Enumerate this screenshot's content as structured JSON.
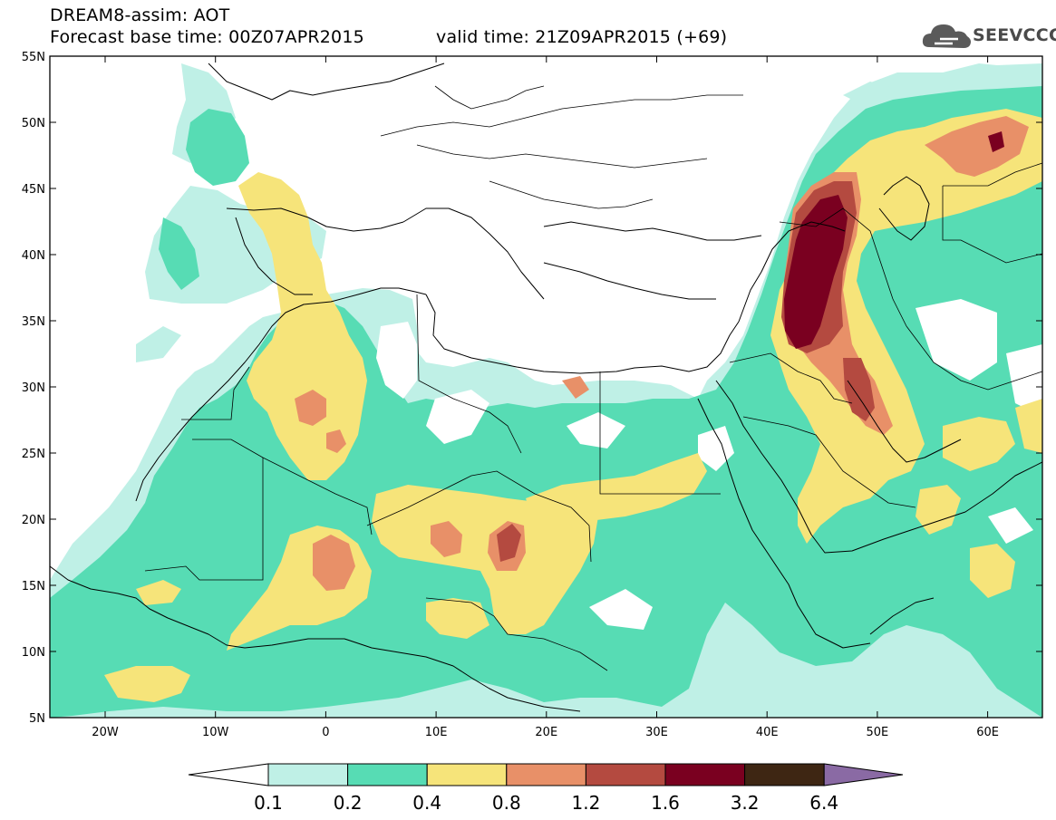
{
  "header": {
    "line1": "DREAM8-assim: AOT",
    "line2_left": "Forecast base time: 00Z07APR2015",
    "line2_right": "valid time: 21Z09APR2015 (+69)"
  },
  "logo": {
    "text": "SEEVCCC",
    "icon": "cloud-icon"
  },
  "axes": {
    "y_ticks": [
      "55N",
      "50N",
      "45N",
      "40N",
      "35N",
      "30N",
      "25N",
      "20N",
      "15N",
      "10N",
      "5N"
    ],
    "x_ticks": [
      "20W",
      "10W",
      "0",
      "10E",
      "20E",
      "30E",
      "40E",
      "50E",
      "60E"
    ]
  },
  "legend": {
    "labels": [
      "0.1",
      "0.2",
      "0.4",
      "0.8",
      "1.2",
      "1.6",
      "3.2",
      "6.4"
    ],
    "colors": [
      "#ffffff",
      "#bff0e6",
      "#57dcb4",
      "#f6e47a",
      "#e89068",
      "#b44a40",
      "#7a0020",
      "#3e2613",
      "#8a6aa4"
    ]
  },
  "map_colors": {
    "c01": "#bff0e6",
    "c02": "#57dcb4",
    "c04": "#f6e47a",
    "c08": "#e89068",
    "c12": "#b44a40",
    "c16": "#7a0020"
  }
}
